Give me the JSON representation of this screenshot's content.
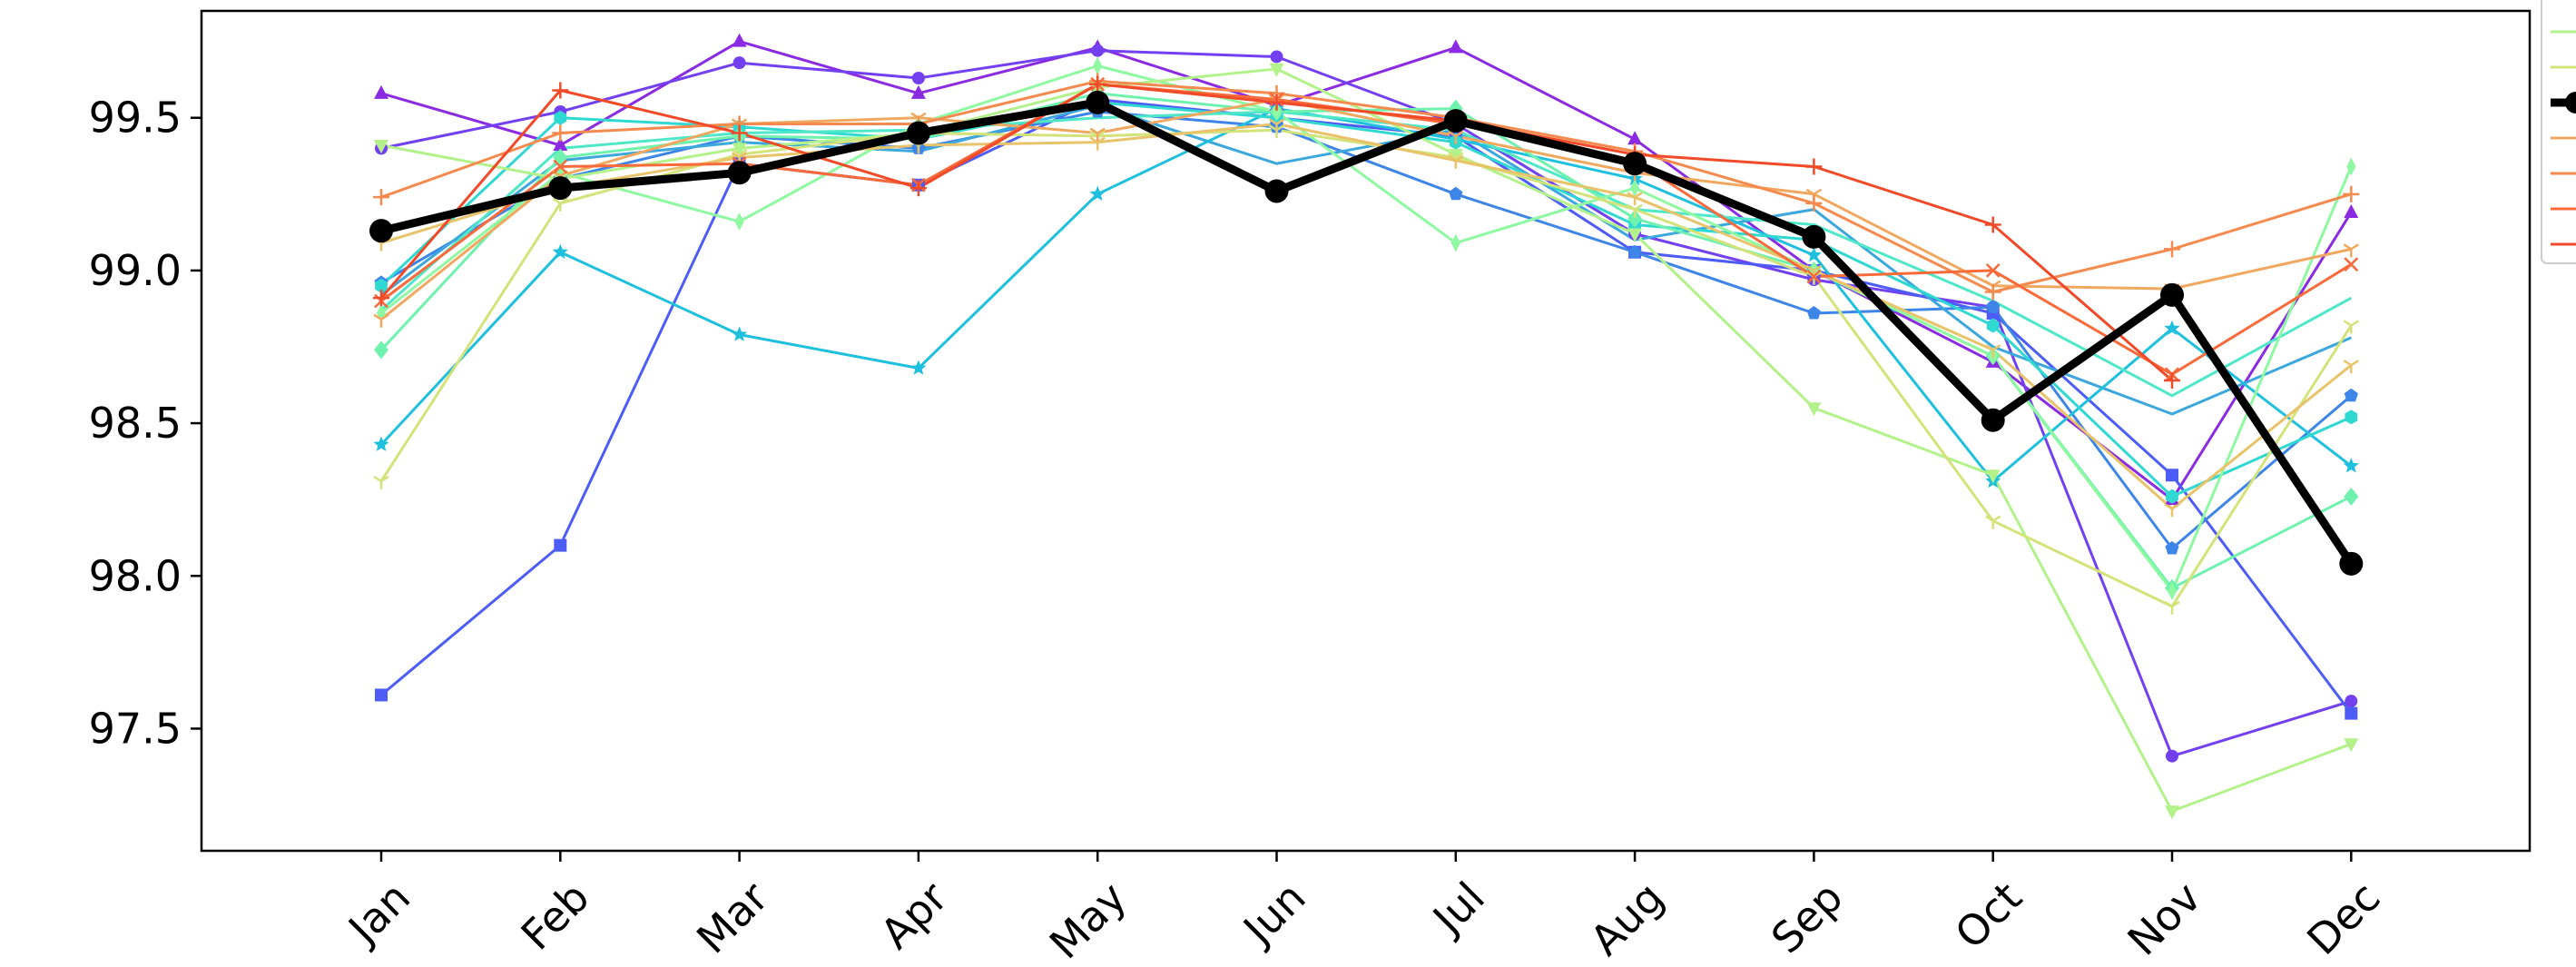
{
  "chart_data": {
    "type": "line",
    "title": "",
    "xlabel": "",
    "ylabel": "",
    "categories": [
      "Jan",
      "Feb",
      "Mar",
      "Apr",
      "May",
      "Jun",
      "Jul",
      "Aug",
      "Sep",
      "Oct",
      "Nov",
      "Dec"
    ],
    "ylim": [
      97.1,
      99.85
    ],
    "yticks": [
      97.5,
      98.0,
      98.5,
      99.0,
      99.5
    ],
    "ytick_labels": [
      "97.5",
      "98.0",
      "98.5",
      "99.0",
      "99.5"
    ],
    "grid": false,
    "legend_position": "right (partially cropped)",
    "series": [
      {
        "color": "#8a2be2",
        "marker": "triangle-up",
        "values": [
          99.58,
          99.41,
          99.75,
          99.58,
          99.73,
          99.54,
          99.73,
          99.43,
          99.0,
          98.7,
          98.25,
          99.19
        ]
      },
      {
        "color": "#7340f0",
        "marker": "circle",
        "values": [
          99.4,
          99.52,
          99.68,
          99.63,
          99.72,
          99.7,
          99.48,
          99.12,
          98.97,
          98.88,
          97.41,
          97.59
        ]
      },
      {
        "color": "#4c5cf5",
        "marker": "square",
        "values": [
          97.61,
          98.1,
          99.35,
          99.28,
          99.56,
          99.5,
          99.44,
          99.06,
          99.0,
          98.86,
          98.33,
          97.55
        ]
      },
      {
        "color": "#3e85e8",
        "marker": "pentagon",
        "values": [
          98.96,
          99.3,
          99.44,
          99.4,
          99.52,
          99.47,
          99.25,
          99.06,
          98.86,
          98.88,
          98.09,
          98.59
        ]
      },
      {
        "color": "#3ba7dc",
        "marker": "none",
        "values": [
          98.92,
          99.36,
          99.42,
          99.39,
          99.54,
          99.35,
          99.46,
          99.1,
          99.2,
          98.75,
          98.53,
          98.78
        ]
      },
      {
        "color": "#1ec0dd",
        "marker": "star",
        "values": [
          98.43,
          99.06,
          98.79,
          98.68,
          99.25,
          99.53,
          99.43,
          99.3,
          99.05,
          98.31,
          98.81,
          98.36
        ]
      },
      {
        "color": "#30d8d2",
        "marker": "hexagon",
        "values": [
          98.95,
          99.5,
          99.47,
          99.43,
          99.55,
          99.5,
          99.42,
          99.15,
          99.1,
          98.82,
          98.26,
          98.52
        ]
      },
      {
        "color": "#4ee8c8",
        "marker": "none",
        "values": [
          98.87,
          99.4,
          99.45,
          99.46,
          99.5,
          99.52,
          99.46,
          99.2,
          99.15,
          98.9,
          98.59,
          98.91
        ]
      },
      {
        "color": "#6ff2ae",
        "marker": "diamond",
        "values": [
          98.74,
          99.37,
          99.44,
          99.43,
          99.58,
          99.52,
          99.53,
          99.17,
          99.0,
          98.72,
          97.96,
          98.26
        ]
      },
      {
        "color": "#8ef9a0",
        "marker": "thin-diamond",
        "values": [
          98.86,
          99.32,
          99.16,
          99.48,
          99.67,
          99.52,
          99.09,
          99.27,
          99.0,
          98.72,
          97.95,
          99.34
        ]
      },
      {
        "color": "#b3f28a",
        "marker": "triangle-down",
        "values": [
          99.41,
          99.3,
          99.4,
          99.45,
          99.6,
          99.66,
          99.38,
          99.12,
          98.55,
          98.33,
          97.23,
          97.45
        ]
      },
      {
        "color": "#d4e27a",
        "marker": "tri-down",
        "values": [
          98.31,
          99.22,
          99.38,
          99.45,
          99.44,
          99.46,
          99.37,
          99.2,
          98.98,
          98.18,
          97.9,
          98.82
        ]
      },
      {
        "color": "#e8c36a",
        "marker": "tri-down",
        "values": [
          99.09,
          99.27,
          99.37,
          99.41,
          99.42,
          99.48,
          99.36,
          99.24,
          99.0,
          98.74,
          98.22,
          98.69
        ]
      },
      {
        "color": "#f0a860",
        "marker": "tri-down",
        "values": [
          98.84,
          99.31,
          99.48,
          99.5,
          99.45,
          99.56,
          99.44,
          99.32,
          99.25,
          98.95,
          98.94,
          99.07
        ]
      },
      {
        "color": "#f58a4e",
        "marker": "plus",
        "values": [
          99.24,
          99.45,
          99.48,
          99.48,
          99.62,
          99.58,
          99.5,
          99.39,
          99.22,
          98.93,
          99.07,
          99.25
        ]
      },
      {
        "color": "#f86a3a",
        "marker": "x",
        "values": [
          98.9,
          99.34,
          99.35,
          99.28,
          99.61,
          99.56,
          99.48,
          99.36,
          98.98,
          99.0,
          98.66,
          99.02
        ]
      },
      {
        "color": "#f04a28",
        "marker": "plus",
        "values": [
          98.91,
          99.59,
          99.45,
          99.27,
          99.61,
          99.55,
          99.49,
          99.38,
          99.34,
          99.15,
          98.64,
          null
        ]
      },
      {
        "color": "#000000",
        "marker": "circle-large",
        "bold": true,
        "values": [
          99.13,
          99.27,
          99.32,
          99.45,
          99.55,
          99.26,
          99.49,
          99.35,
          99.11,
          98.51,
          98.92,
          98.04
        ]
      }
    ]
  }
}
